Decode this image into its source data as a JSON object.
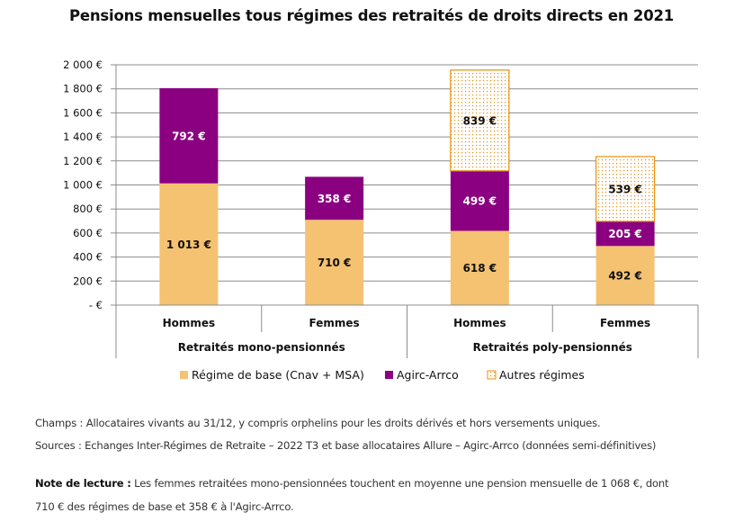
{
  "colors": {
    "base": "#F5C272",
    "agirc": "#8B0080",
    "autres_border": "#E8900E",
    "autres_dot": "#E8900E",
    "grid": "#8C8C8C",
    "text": "#111111"
  },
  "chart_data": {
    "type": "bar",
    "stacked": true,
    "title": "Pensions mensuelles tous régimes des retraités de droits directs en 2021",
    "xlabel": "",
    "ylabel": "",
    "ylim": [
      0,
      2000
    ],
    "yticks": [
      0,
      200,
      400,
      600,
      800,
      1000,
      1200,
      1400,
      1600,
      1800,
      2000
    ],
    "ytick_labels": [
      "-   €",
      "200 €",
      "400 €",
      "600 €",
      "800 €",
      "1 000 €",
      "1 200 €",
      "1 400 €",
      "1 600 €",
      "1 800 €",
      "2 000 €"
    ],
    "grid": true,
    "categories": [
      "Hommes",
      "Femmes",
      "Hommes",
      "Femmes"
    ],
    "groups": [
      {
        "label": "Retraités mono-pensionnés",
        "span": 2
      },
      {
        "label": "Retraités poly-pensionnés",
        "span": 2
      }
    ],
    "series": [
      {
        "name": "Régime de base (Cnav + MSA)",
        "key": "base",
        "values": [
          1013,
          710,
          618,
          492
        ],
        "labels": [
          "1 013 €",
          "710 €",
          "618 €",
          "492 €"
        ],
        "label_color": "#111111"
      },
      {
        "name": "Agirc-Arrco",
        "key": "agirc",
        "values": [
          792,
          358,
          499,
          205
        ],
        "labels": [
          "792 €",
          "358 €",
          "499 €",
          "205 €"
        ],
        "label_color": "#ffffff"
      },
      {
        "name": "Autres régimes",
        "key": "autres",
        "values": [
          0,
          0,
          839,
          539
        ],
        "labels": [
          "",
          "",
          "839 €",
          "539 €"
        ],
        "label_color": "#111111"
      }
    ],
    "legend": {
      "placement": "bottom"
    }
  },
  "notes": {
    "champs": "Champs : Allocataires vivants au 31/12, y compris orphelins pour les droits dérivés et hors versements uniques.",
    "sources": "Sources : Echanges Inter-Régimes de Retraite – 2022 T3 et base allocataires Allure – Agirc-Arrco (données semi-définitives)",
    "lecture_label": "Note de lecture :",
    "lecture_text_1": " Les femmes retraitées mono-pensionnées touchent en moyenne une pension mensuelle de 1 068 €, dont",
    "lecture_text_2": "710 € des régimes de base et 358 € à l'Agirc-Arrco."
  }
}
